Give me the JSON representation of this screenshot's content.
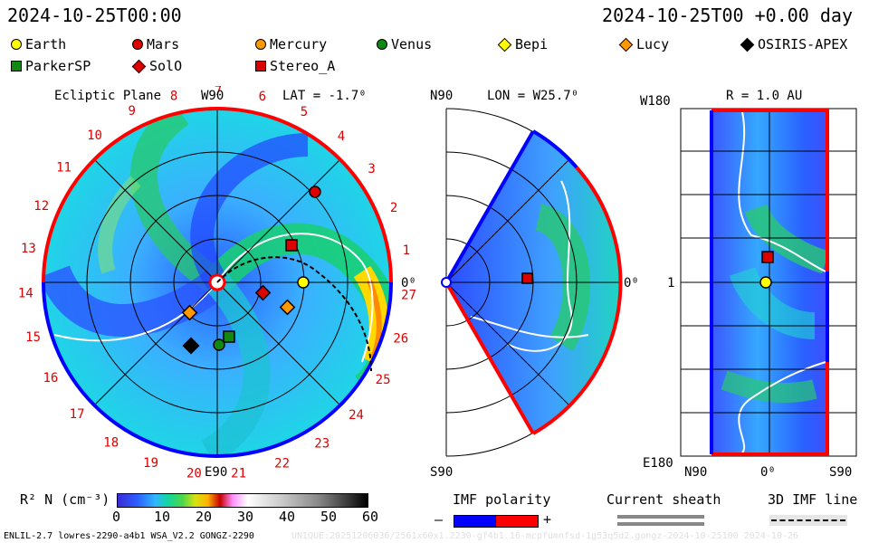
{
  "header": {
    "datetime_left": "2024-10-25T00:00",
    "datetime_right": "2024-10-25T00 +0.00 day"
  },
  "legend": {
    "items": [
      {
        "label": "Earth",
        "shape": "circle",
        "color": "#ffff00"
      },
      {
        "label": "Mars",
        "shape": "circle",
        "color": "#dd0000"
      },
      {
        "label": "Mercury",
        "shape": "circle",
        "color": "#ff9900"
      },
      {
        "label": "Venus",
        "shape": "circle",
        "color": "#118811"
      },
      {
        "label": "Bepi",
        "shape": "diamond",
        "color": "#ffff00"
      },
      {
        "label": "Lucy",
        "shape": "diamond",
        "color": "#ff9900"
      },
      {
        "label": "OSIRIS-APEX",
        "shape": "diamond",
        "color": "#000000"
      },
      {
        "label": "ParkerSP",
        "shape": "square",
        "color": "#118811"
      },
      {
        "label": "SolO",
        "shape": "diamond",
        "color": "#dd0000"
      },
      {
        "label": "Stereo_A",
        "shape": "square",
        "color": "#dd0000"
      }
    ]
  },
  "panel_ecliptic": {
    "title": "Ecliptic Plane",
    "top_label": "W90",
    "lat_label": "LAT = -1.7⁰",
    "right_label": "0⁰",
    "bottom_label": "E90",
    "carrington_numbers": [
      "1",
      "2",
      "3",
      "4",
      "5",
      "6",
      "7",
      "8",
      "9",
      "10",
      "11",
      "12",
      "13",
      "14",
      "15",
      "16",
      "17",
      "18",
      "19",
      "20",
      "21",
      "22",
      "23",
      "24",
      "25",
      "26",
      "27"
    ]
  },
  "panel_meridional": {
    "top_label": "N90",
    "lon_label": "LON = W25.7⁰",
    "right_label": "0⁰",
    "bottom_label": "S90"
  },
  "panel_radial": {
    "top_left_label": "W180",
    "r_label": "R = 1.0 AU",
    "mid_label": "1",
    "bottom_left_label": "E180",
    "x_labels": [
      "N90",
      "0⁰",
      "S90"
    ]
  },
  "colorbar": {
    "label": "R² N (cm⁻³)",
    "ticks": [
      "0",
      "10",
      "20",
      "30",
      "40",
      "50",
      "60"
    ]
  },
  "imf_polarity": {
    "title": "IMF polarity",
    "minus": "–",
    "plus": "+"
  },
  "current_sheath": {
    "title": "Current sheath"
  },
  "imf_line": {
    "title": "3D IMF line"
  },
  "footer": {
    "left": "ENLIL-2.7 lowres-2290-a4b1 WSA_V2.2 GONGZ-2290",
    "right": "UNIQUE:20251206036/2561x60x1.2230-gf4b1.16-mcpfumnfsd-1g53q5d2.gongz-2024-10-25100    2024-10-26"
  },
  "colors": {
    "positive_polarity": "#ff0000",
    "negative_polarity": "#0000ff"
  }
}
